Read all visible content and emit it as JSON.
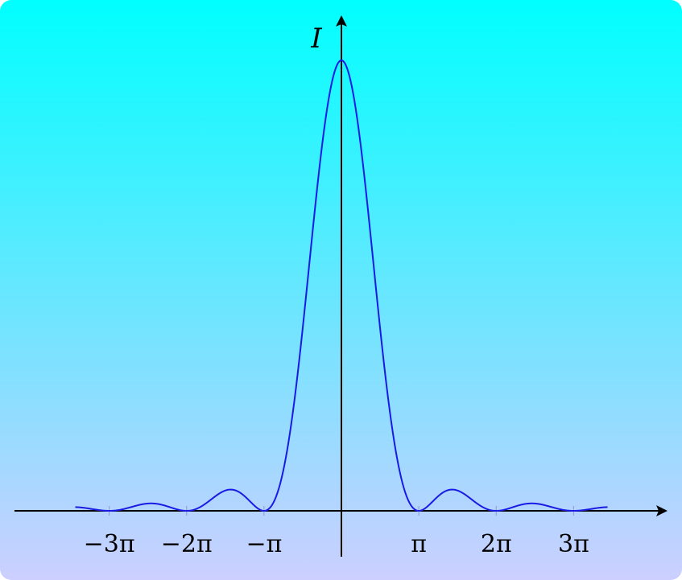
{
  "chart_data": {
    "type": "line",
    "function": "sinc-squared",
    "title": "",
    "xlabel": "",
    "ylabel": "I",
    "x_ticks": [
      {
        "value": -9.42478,
        "label": "−3π"
      },
      {
        "value": -6.28319,
        "label": "−2π"
      },
      {
        "value": -3.14159,
        "label": "−π"
      },
      {
        "value": 3.14159,
        "label": "π"
      },
      {
        "value": 6.28319,
        "label": "2π"
      },
      {
        "value": 9.42478,
        "label": "3π"
      }
    ],
    "xlim": [
      -11.0,
      10.6
    ],
    "ylim": [
      0,
      1.05
    ],
    "y_peak": 1.0,
    "curve_range": [
      -10.8,
      10.8
    ],
    "grid": false,
    "legend": "none",
    "series": [
      {
        "line_color": "#1a1ae6"
      }
    ]
  },
  "colors": {
    "background_top": "#00ffff",
    "background_bottom": "#cccfff",
    "axis": "#000000",
    "curve": "#1a1ae6",
    "tick": "#9aa0c8"
  }
}
